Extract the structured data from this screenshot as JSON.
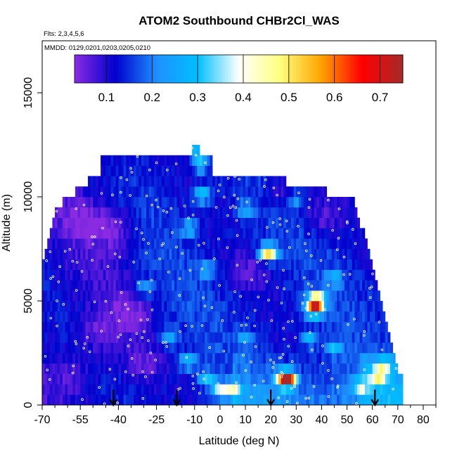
{
  "chart_data": {
    "type": "heatmap",
    "title": "ATOM2 Southbound CHBr2Cl_WAS",
    "notes": [
      "Flts: 2,3,4,5,6",
      "MMDD: 0129,0201,0203,0205,0210"
    ],
    "xlabel": "Latitude (deg N)",
    "ylabel": "Altitude (m)",
    "xlim": [
      -70,
      85
    ],
    "ylim": [
      0,
      17500
    ],
    "x_ticks": [
      -70,
      -55,
      -40,
      -25,
      -10,
      0,
      10,
      20,
      30,
      40,
      50,
      60,
      70,
      80
    ],
    "x_minor_ticks": [
      -65,
      -60,
      -50,
      -45,
      -35,
      -30,
      -20,
      -15,
      -5,
      5,
      15,
      25,
      35,
      45,
      55,
      65,
      75,
      85
    ],
    "y_ticks": [
      0,
      5000,
      10000,
      15000
    ],
    "colorbar": {
      "range": [
        0.03,
        0.75
      ],
      "ticks": [
        0.1,
        0.2,
        0.3,
        0.4,
        0.5,
        0.6,
        0.7
      ],
      "colors": [
        "#8a2be2",
        "#0000cd",
        "#1e90ff",
        "#00bfff",
        "#ffffff",
        "#ffff80",
        "#ffa500",
        "#ff0000",
        "#a52a2a"
      ]
    },
    "arrows_latitude": [
      -42,
      -17,
      20,
      61
    ],
    "altitude_bins": [
      {
        "alt": 500,
        "lat": [
          -70,
          72
        ]
      },
      {
        "alt": 1000,
        "lat": [
          -70,
          72
        ]
      },
      {
        "alt": 1500,
        "lat": [
          -70,
          72
        ]
      },
      {
        "alt": 2000,
        "lat": [
          -70,
          70
        ]
      },
      {
        "alt": 2500,
        "lat": [
          -70,
          69
        ]
      },
      {
        "alt": 3000,
        "lat": [
          -70,
          68
        ]
      },
      {
        "alt": 3500,
        "lat": [
          -70,
          67
        ]
      },
      {
        "alt": 4000,
        "lat": [
          -70,
          66
        ]
      },
      {
        "alt": 4500,
        "lat": [
          -70,
          65
        ]
      },
      {
        "alt": 5000,
        "lat": [
          -70,
          64
        ]
      },
      {
        "alt": 5500,
        "lat": [
          -70,
          63
        ]
      },
      {
        "alt": 6000,
        "lat": [
          -70,
          62
        ]
      },
      {
        "alt": 6500,
        "lat": [
          -70,
          61
        ]
      },
      {
        "alt": 7000,
        "lat": [
          -70,
          60
        ]
      },
      {
        "alt": 7500,
        "lat": [
          -69,
          59
        ]
      },
      {
        "alt": 8000,
        "lat": [
          -68,
          58
        ]
      },
      {
        "alt": 8500,
        "lat": [
          -67,
          57
        ]
      },
      {
        "alt": 9000,
        "lat": [
          -66,
          55
        ]
      },
      {
        "alt": 9500,
        "lat": [
          -65,
          54
        ]
      },
      {
        "alt": 10000,
        "lat": [
          -62,
          53
        ]
      },
      {
        "alt": 10500,
        "lat": [
          -57,
          42
        ]
      },
      {
        "alt": 11000,
        "lat": [
          -52,
          26
        ]
      },
      {
        "alt": 11500,
        "lat": [
          -47,
          -3
        ]
      },
      {
        "alt": 12000,
        "lat": [
          -47,
          -3
        ]
      },
      {
        "alt": 12500,
        "lat": [
          -11,
          -8
        ]
      }
    ],
    "hotspots": [
      {
        "lat": 38,
        "alt": 5000,
        "value": 0.62
      },
      {
        "lat": 37,
        "alt": 4600,
        "value": 0.48
      },
      {
        "lat": 27,
        "alt": 1250,
        "value": 0.58
      },
      {
        "lat": 25,
        "alt": 1250,
        "value": 0.45
      },
      {
        "lat": 20,
        "alt": 7300,
        "value": 0.36
      },
      {
        "lat": 18,
        "alt": 7300,
        "value": 0.35
      },
      {
        "lat": -7,
        "alt": 10100,
        "value": 0.36
      },
      {
        "lat": -8,
        "alt": 11600,
        "value": 0.34
      },
      {
        "lat": -10,
        "alt": 12400,
        "value": 0.33
      },
      {
        "lat": 0,
        "alt": 700,
        "value": 0.38
      },
      {
        "lat": 5,
        "alt": 700,
        "value": 0.37
      },
      {
        "lat": -5,
        "alt": 1300,
        "value": 0.32
      },
      {
        "lat": 62,
        "alt": 1300,
        "value": 0.34
      },
      {
        "lat": 64,
        "alt": 1800,
        "value": 0.33
      },
      {
        "lat": 55,
        "alt": 900,
        "value": 0.32
      },
      {
        "lat": -13,
        "alt": 2100,
        "value": 0.3
      },
      {
        "lat": -20,
        "alt": 3200,
        "value": 0.28
      },
      {
        "lat": 35,
        "alt": 3200,
        "value": 0.3
      },
      {
        "lat": 45,
        "alt": 2800,
        "value": 0.29
      },
      {
        "lat": -30,
        "alt": 5600,
        "value": 0.26
      },
      {
        "lat": -12,
        "alt": 8500,
        "value": 0.29
      },
      {
        "lat": 10,
        "alt": 9400,
        "value": 0.27
      },
      {
        "lat": 30,
        "alt": 9900,
        "value": 0.27
      },
      {
        "lat": -5,
        "alt": 6500,
        "value": 0.27
      },
      {
        "lat": 10,
        "alt": 3300,
        "value": 0.25
      },
      {
        "lat": 45,
        "alt": 6100,
        "value": 0.26
      }
    ],
    "low_zones": [
      {
        "lat": -35,
        "alt": 4500,
        "value": 0.05
      },
      {
        "lat": -55,
        "alt": 8800,
        "value": 0.06
      },
      {
        "lat": -42,
        "alt": 8500,
        "value": 0.05
      },
      {
        "lat": -48,
        "alt": 3500,
        "value": 0.07
      },
      {
        "lat": -58,
        "alt": 1500,
        "value": 0.08
      },
      {
        "lat": -30,
        "alt": 2000,
        "value": 0.07
      },
      {
        "lat": 25,
        "alt": 10200,
        "value": 0.05
      },
      {
        "lat": 40,
        "alt": 9000,
        "value": 0.06
      },
      {
        "lat": 12,
        "alt": 6500,
        "value": 0.08
      }
    ]
  }
}
